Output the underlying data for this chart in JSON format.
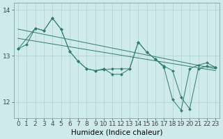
{
  "bg_color": "#ceeaea",
  "line_color": "#2e7d6e",
  "grid_color": "#aed0d0",
  "xlabel": "Humidex (Indice chaleur)",
  "xlabel_fontsize": 7.5,
  "tick_fontsize": 6.5,
  "ylim": [
    11.65,
    14.15
  ],
  "xlim": [
    -0.5,
    23.5
  ],
  "yticks": [
    12,
    13,
    14
  ],
  "xticks": [
    0,
    1,
    2,
    3,
    4,
    5,
    6,
    7,
    8,
    9,
    10,
    11,
    12,
    13,
    14,
    15,
    16,
    17,
    18,
    19,
    20,
    21,
    22,
    23
  ],
  "line1_x": [
    0,
    1,
    2,
    3,
    4,
    5,
    6,
    7,
    8,
    9,
    10,
    11,
    12,
    13,
    14,
    15,
    16,
    17,
    18,
    19,
    20,
    21,
    22,
    23
  ],
  "line1_y": [
    13.15,
    13.25,
    13.6,
    13.55,
    13.82,
    13.58,
    13.1,
    12.88,
    12.72,
    12.68,
    12.7,
    12.72,
    12.72,
    12.72,
    13.3,
    13.08,
    12.93,
    12.78,
    12.68,
    12.1,
    11.85,
    12.72,
    12.78,
    12.75
  ],
  "line2_x": [
    0,
    2,
    3,
    4,
    5,
    6,
    7,
    8,
    9,
    10,
    11,
    12,
    13,
    14,
    15,
    16,
    17,
    18,
    19,
    20,
    21,
    22,
    23
  ],
  "line2_y": [
    13.15,
    13.6,
    13.55,
    13.82,
    13.58,
    13.1,
    12.88,
    12.72,
    12.68,
    12.72,
    12.6,
    12.6,
    12.72,
    13.3,
    13.08,
    12.93,
    12.75,
    12.05,
    11.82,
    12.72,
    12.8,
    12.85,
    12.75
  ],
  "trend1_x": [
    0,
    23
  ],
  "trend1_y": [
    13.58,
    12.72
  ],
  "trend2_x": [
    0,
    23
  ],
  "trend2_y": [
    13.38,
    12.68
  ],
  "marker": "D",
  "markersize": 2.0,
  "linewidth": 0.7
}
